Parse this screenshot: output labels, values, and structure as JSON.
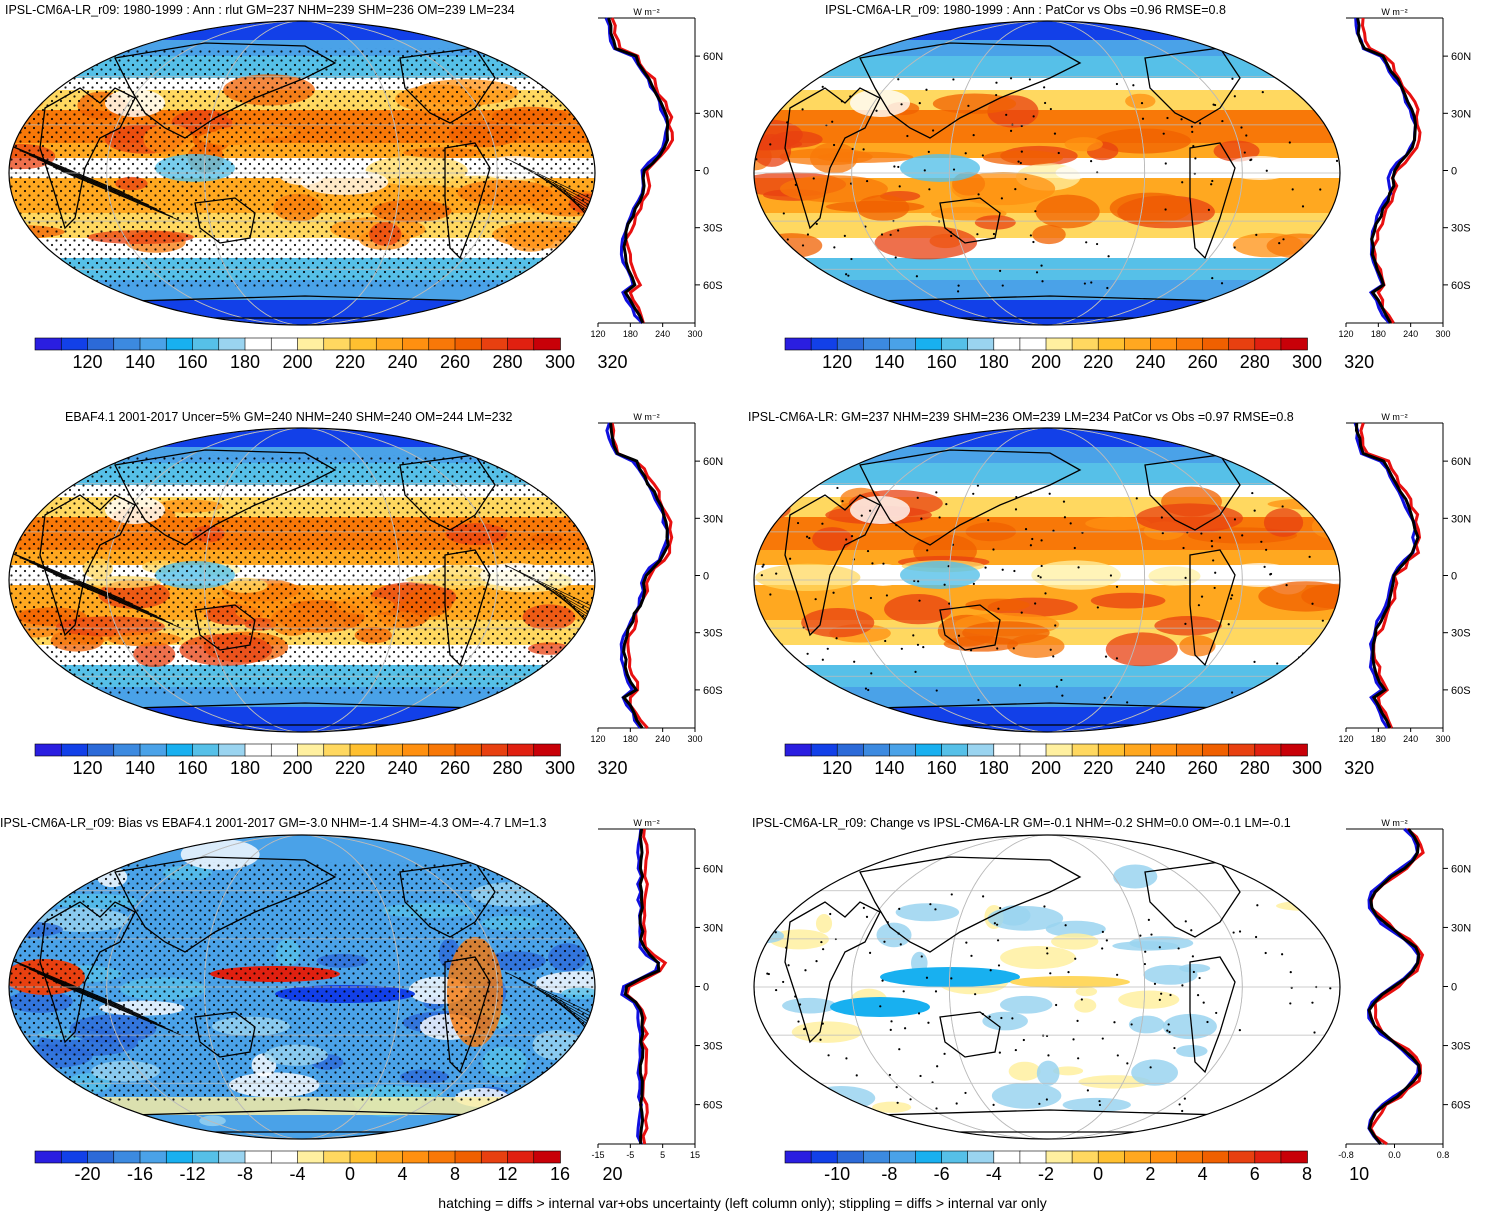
{
  "panels": [
    {
      "id": "tl",
      "title": "IPSL-CM6A-LR_r09: 1980-1999 : Ann : rlut GM=237 NHM=239 SHM=236 OM=239 LM=234",
      "colorbar_labels": [
        "120",
        "140",
        "160",
        "180",
        "200",
        "220",
        "240",
        "260",
        "280",
        "300",
        "320"
      ],
      "profile_xticks": [
        "120",
        "180",
        "240",
        "300"
      ],
      "profile_unit": "W m⁻²",
      "lat_labels": [
        "60N",
        "30N",
        "0",
        "30S",
        "60S"
      ],
      "style": "full",
      "stipple": "dense",
      "hatch": true
    },
    {
      "id": "tr",
      "title": "IPSL-CM6A-LR_r09: 1980-1999 : Ann : PatCor vs Obs =0.96 RMSE=0.8",
      "colorbar_labels": [
        "120",
        "140",
        "160",
        "180",
        "200",
        "220",
        "240",
        "260",
        "280",
        "300",
        "320"
      ],
      "profile_xticks": [
        "120",
        "180",
        "240",
        "300"
      ],
      "profile_unit": "W m⁻²",
      "lat_labels": [
        "60N",
        "30N",
        "0",
        "30S",
        "60S"
      ],
      "style": "full",
      "stipple": "sparse",
      "hatch": false
    },
    {
      "id": "ml",
      "title": "EBAF4.1 2001-2017 Uncer=5% GM=240 NHM=240 SHM=240 OM=244 LM=232",
      "colorbar_labels": [
        "120",
        "140",
        "160",
        "180",
        "200",
        "220",
        "240",
        "260",
        "280",
        "300",
        "320"
      ],
      "profile_xticks": [
        "120",
        "180",
        "240",
        "300"
      ],
      "profile_unit": "W m⁻²",
      "lat_labels": [
        "60N",
        "30N",
        "0",
        "30S",
        "60S"
      ],
      "style": "full",
      "stipple": "dense",
      "hatch": true
    },
    {
      "id": "mr",
      "title": "IPSL-CM6A-LR: GM=237 NHM=239 SHM=236 OM=239 LM=234 PatCor vs Obs =0.97 RMSE=0.8",
      "colorbar_labels": [
        "120",
        "140",
        "160",
        "180",
        "200",
        "220",
        "240",
        "260",
        "280",
        "300",
        "320"
      ],
      "profile_xticks": [
        "120",
        "180",
        "240",
        "300"
      ],
      "profile_unit": "W m⁻²",
      "lat_labels": [
        "60N",
        "30N",
        "0",
        "30S",
        "60S"
      ],
      "style": "full",
      "stipple": "sparse",
      "hatch": false
    },
    {
      "id": "bl",
      "title": "IPSL-CM6A-LR_r09: Bias vs EBAF4.1 2001-2017 GM=-3.0 NHM=-1.4 SHM=-4.3 OM=-4.7 LM=1.3",
      "colorbar_labels": [
        "-20",
        "-16",
        "-12",
        "-8",
        "-4",
        "0",
        "4",
        "8",
        "12",
        "16",
        "20"
      ],
      "profile_xticks": [
        "-15",
        "-5",
        "5",
        "15"
      ],
      "profile_unit": "W m⁻²",
      "lat_labels": [
        "60N",
        "30N",
        "0",
        "30S",
        "60S"
      ],
      "style": "bias",
      "stipple": "dense",
      "hatch": true
    },
    {
      "id": "br",
      "title": "IPSL-CM6A-LR_r09: Change vs IPSL-CM6A-LR GM=-0.1 NHM=-0.2 SHM=0.0 OM=-0.1 LM=-0.1",
      "colorbar_labels": [
        "-10",
        "-8",
        "-6",
        "-4",
        "-2",
        "0",
        "2",
        "4",
        "6",
        "8",
        "10"
      ],
      "profile_xticks": [
        "-0.8",
        "0.0",
        "0.8"
      ],
      "profile_unit": "W m⁻²",
      "lat_labels": [
        "60N",
        "30N",
        "0",
        "30S",
        "60S"
      ],
      "style": "change",
      "stipple": "sparse",
      "hatch": false
    }
  ],
  "colors": {
    "full_scale": [
      "#2a1ee0",
      "#1240e8",
      "#2c6ad8",
      "#3c8ae0",
      "#4aa2e8",
      "#18b0f0",
      "#56c0e8",
      "#9ad4f0",
      "#ffffff",
      "#ffffff",
      "#fff0a0",
      "#ffd860",
      "#ffc030",
      "#ffa820",
      "#ff9010",
      "#f87808",
      "#f06000",
      "#e84010",
      "#e02010",
      "#c80008"
    ],
    "profile_red": "#e81010",
    "profile_blue": "#1010e0",
    "profile_black": "#000000"
  },
  "footer": "hatching = diffs > internal var+obs uncertainty (left column only); stippling = diffs > internal var only"
}
